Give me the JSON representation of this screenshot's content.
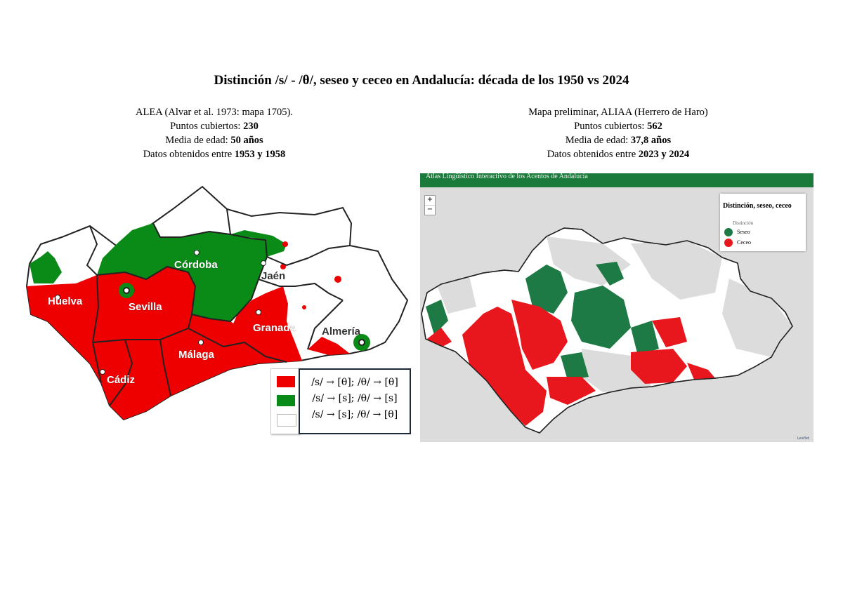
{
  "title": "Distinción /s/ - /θ/, seseo y ceceo en Andalucía: década de los 1950 vs 2024",
  "left": {
    "source": "ALEA (Alvar et al. 1973: mapa 1705).",
    "points_label": "Puntos cubiertos: ",
    "points_value": "230",
    "age_label": "Media de edad: ",
    "age_value": "50 años",
    "dates_label": "Datos obtenidos entre ",
    "dates_value": "1953 y 1958",
    "cities": [
      "Huelva",
      "Sevilla",
      "Córdoba",
      "Jaén",
      "Granada",
      "Almería",
      "Málaga",
      "Cádiz"
    ],
    "legend": [
      {
        "label": "/s/ → [θ]; /θ/ → [θ]",
        "color": "#ee0000"
      },
      {
        "label": "/s/ → [s]; /θ/ → [s]",
        "color": "#0a8a16"
      },
      {
        "label": "/s/ → [s]; /θ/ → [θ]",
        "color": "#ffffff"
      }
    ]
  },
  "right": {
    "source": "Mapa preliminar, ALIAA (Herrero de Haro)",
    "points_label": "Puntos cubiertos: ",
    "points_value": "562",
    "age_label": "Media de edad: ",
    "age_value": "37,8 años",
    "dates_label": "Datos obtenidos entre ",
    "dates_value": "2023 y 2024",
    "header": "Atlas Lingüístico Interactivo de los Acentos de Andalucía",
    "zoom_in": "+",
    "zoom_out": "−",
    "legend_title": "Distinción, seseo, ceceo",
    "legend_subtitle": "Distinción",
    "legend": [
      {
        "label": "Seseo",
        "color": "#1e7a44"
      },
      {
        "label": "Ceceo",
        "color": "#e8171e"
      }
    ],
    "attribution": "Leaflet"
  },
  "colors": {
    "ceceo": "#ee0000",
    "seseo": "#0a8a16",
    "distincion": "#ffffff",
    "right_ceceo": "#e8171e",
    "right_seseo": "#1e7a44",
    "right_nodata": "#dcdcdc",
    "header_green": "#1a7a3c"
  }
}
